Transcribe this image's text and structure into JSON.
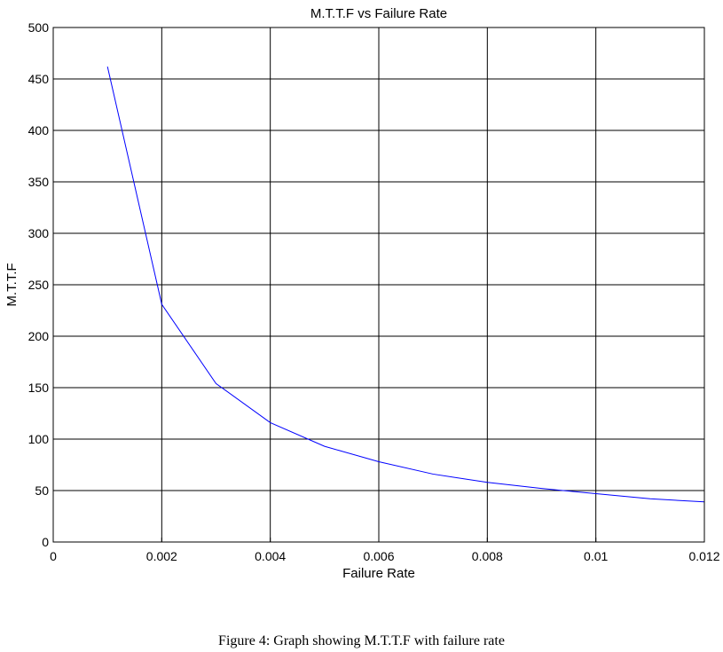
{
  "chart_data": {
    "type": "line",
    "title": "M.T.T.F vs Failure Rate",
    "xlabel": "Failure Rate",
    "ylabel": "M.T.T.F",
    "xlim": [
      0,
      0.012
    ],
    "ylim": [
      0,
      500
    ],
    "xticks": [
      0,
      0.002,
      0.004,
      0.006,
      0.008,
      0.01,
      0.012
    ],
    "xtick_labels": [
      "0",
      "0.002",
      "0.004",
      "0.006",
      "0.008",
      "0.01",
      "0.012"
    ],
    "yticks": [
      0,
      50,
      100,
      150,
      200,
      250,
      300,
      350,
      400,
      450,
      500
    ],
    "ytick_labels": [
      "0",
      "50",
      "100",
      "150",
      "200",
      "250",
      "300",
      "350",
      "400",
      "450",
      "500"
    ],
    "grid": true,
    "series": [
      {
        "color": "#0000ff",
        "x": [
          0.001,
          0.002,
          0.003,
          0.004,
          0.005,
          0.006,
          0.007,
          0.008,
          0.009,
          0.01,
          0.011,
          0.012
        ],
        "y": [
          462,
          231,
          154,
          116,
          93,
          78,
          66,
          58,
          52,
          47,
          42,
          39
        ]
      }
    ]
  },
  "caption": "Figure 4: Graph showing M.T.T.F with failure rate"
}
